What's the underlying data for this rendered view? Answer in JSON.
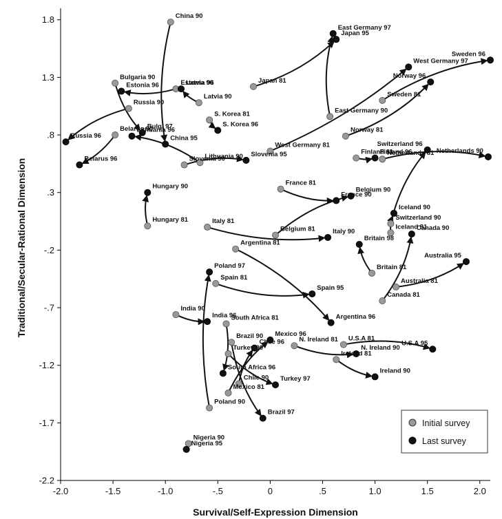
{
  "chart_data": {
    "type": "scatter",
    "xlabel": "Survival/Self-Expression Dimension",
    "ylabel": "Traditional/Secular-Rational Dimension",
    "xlim": [
      -2.0,
      2.1
    ],
    "ylim": [
      -2.2,
      1.9
    ],
    "xticks": [
      "-2.0",
      "-1.5",
      "-1.0",
      "-.5",
      "0",
      ".5",
      "1.0",
      "1.5",
      "2.0"
    ],
    "yticks": [
      "1.8",
      "1.3",
      ".8",
      ".3",
      "-.2",
      "-.7",
      "-1.2",
      "-1.7",
      "-2.2"
    ],
    "grid": false,
    "legend_position": "bottom-right",
    "legend": [
      {
        "label": "Initial survey",
        "color": "#999999"
      },
      {
        "label": "Last survey",
        "color": "#111111"
      }
    ],
    "trajectories": [
      {
        "start": {
          "label": "China 90",
          "x": -0.95,
          "y": 1.78
        },
        "end": {
          "label": "China 95",
          "x": -1.0,
          "y": 0.72
        }
      },
      {
        "start": {
          "label": "Estonia 90",
          "x": -0.9,
          "y": 1.2
        },
        "end": {
          "label": "Estonia 96",
          "x": -1.42,
          "y": 1.18
        }
      },
      {
        "start": {
          "label": "Bulgaria 90",
          "x": -1.48,
          "y": 1.25
        },
        "end": {
          "label": "Bulg. 97",
          "x": -1.22,
          "y": 0.82
        }
      },
      {
        "start": {
          "label": "Latvia 90",
          "x": -0.68,
          "y": 1.08
        },
        "end": {
          "label": "Latvia 96",
          "x": -0.85,
          "y": 1.2
        }
      },
      {
        "start": {
          "label": "Russia 90",
          "x": -1.35,
          "y": 1.03
        },
        "end": {
          "label": "Russia 96",
          "x": -1.95,
          "y": 0.74
        }
      },
      {
        "start": {
          "label": "Belarus 90",
          "x": -1.48,
          "y": 0.8
        },
        "end": {
          "label": "Belarus 96",
          "x": -1.82,
          "y": 0.54
        }
      },
      {
        "start": {
          "label": "Lithuania 90",
          "x": -0.67,
          "y": 0.56
        },
        "end": {
          "label": "Lithuania 96",
          "x": -1.32,
          "y": 0.79
        }
      },
      {
        "start": {
          "label": "Slovenia 90",
          "x": -0.82,
          "y": 0.54
        },
        "end": {
          "label": "Slovenia 95",
          "x": -0.23,
          "y": 0.58
        }
      },
      {
        "start": {
          "label": "S. Korea 81",
          "x": -0.58,
          "y": 0.93
        },
        "end": {
          "label": "S. Korea 96",
          "x": -0.5,
          "y": 0.84
        }
      },
      {
        "start": {
          "label": "Hungary 81",
          "x": -1.17,
          "y": 0.01
        },
        "end": {
          "label": "Hungary 90",
          "x": -1.17,
          "y": 0.3
        }
      },
      {
        "start": {
          "label": "Japan 81",
          "x": -0.16,
          "y": 1.22
        },
        "end": {
          "label": "Japan 95",
          "x": 0.63,
          "y": 1.63
        }
      },
      {
        "start": {
          "label": "East Germany 90",
          "x": 0.57,
          "y": 0.96
        },
        "end": {
          "label": "East Germany 97",
          "x": 0.6,
          "y": 1.68
        }
      },
      {
        "start": {
          "label": "West Germany 81",
          "x": 0.0,
          "y": 0.66
        },
        "end": {
          "label": "West Germany 97",
          "x": 1.32,
          "y": 1.39
        }
      },
      {
        "start": {
          "label": "Sweden 81",
          "x": 1.07,
          "y": 1.1
        },
        "end": {
          "label": "Sweden 96",
          "x": 2.1,
          "y": 1.45
        }
      },
      {
        "start": {
          "label": "Norway 81",
          "x": 0.72,
          "y": 0.79
        },
        "end": {
          "label": "Norway 96",
          "x": 1.53,
          "y": 1.26
        }
      },
      {
        "start": {
          "label": "Netherlands 81",
          "x": 1.07,
          "y": 0.59
        },
        "end": {
          "label": "Netherlands 90",
          "x": 2.08,
          "y": 0.61
        }
      },
      {
        "start": {
          "label": "Finland 81",
          "x": 0.82,
          "y": 0.6
        },
        "end": {
          "label": "Finland 96",
          "x": 1.0,
          "y": 0.6
        }
      },
      {
        "start": {
          "label": "Switzerland 90",
          "x": 1.15,
          "y": 0.03
        },
        "end": {
          "label": "Switzerland 96",
          "x": 1.5,
          "y": 0.67
        }
      },
      {
        "start": {
          "label": "France 81",
          "x": 0.1,
          "y": 0.33
        },
        "end": {
          "label": "France 90",
          "x": 0.63,
          "y": 0.23
        }
      },
      {
        "start": {
          "label": "Belgium 81",
          "x": 0.05,
          "y": -0.07
        },
        "end": {
          "label": "Belgium 90",
          "x": 0.77,
          "y": 0.27
        }
      },
      {
        "start": {
          "label": "Italy 81",
          "x": -0.6,
          "y": 0.0
        },
        "end": {
          "label": "Italy 90",
          "x": 0.55,
          "y": -0.09
        }
      },
      {
        "start": {
          "label": "Iceland 81",
          "x": 1.15,
          "y": -0.05
        },
        "end": {
          "label": "Iceland 90",
          "x": 1.18,
          "y": 0.12
        }
      },
      {
        "start": {
          "label": "Canada 81",
          "x": 1.07,
          "y": -0.64
        },
        "end": {
          "label": "Canada 90",
          "x": 1.35,
          "y": -0.06
        }
      },
      {
        "start": {
          "label": "Britain 81",
          "x": 0.97,
          "y": -0.4
        },
        "end": {
          "label": "Britain 98",
          "x": 0.85,
          "y": -0.15
        }
      },
      {
        "start": {
          "label": "Australia 81",
          "x": 1.2,
          "y": -0.52
        },
        "end": {
          "label": "Australia 95",
          "x": 1.87,
          "y": -0.3
        }
      },
      {
        "start": {
          "label": "Argentina 81",
          "x": -0.33,
          "y": -0.19
        },
        "end": {
          "label": "Argentina 96",
          "x": 0.58,
          "y": -0.83
        }
      },
      {
        "start": {
          "label": "Spain 81",
          "x": -0.52,
          "y": -0.49
        },
        "end": {
          "label": "Spain 95",
          "x": 0.4,
          "y": -0.58
        }
      },
      {
        "start": {
          "label": "Poland 90",
          "x": -0.58,
          "y": -1.57
        },
        "end": {
          "label": "Poland 97",
          "x": -0.58,
          "y": -0.39
        }
      },
      {
        "start": {
          "label": "India 90",
          "x": -0.9,
          "y": -0.76
        },
        "end": {
          "label": "India 96",
          "x": -0.6,
          "y": -0.82
        }
      },
      {
        "start": {
          "label": "South Africa 81",
          "x": -0.42,
          "y": -0.84
        },
        "end": {
          "label": "South Africa 96",
          "x": -0.45,
          "y": -1.27
        }
      },
      {
        "start": {
          "label": "Brazil 90",
          "x": -0.37,
          "y": -1.0
        },
        "end": {
          "label": "Brazil 97",
          "x": -0.07,
          "y": -1.66
        }
      },
      {
        "start": {
          "label": "Mexico 81",
          "x": -0.4,
          "y": -1.44
        },
        "end": {
          "label": "Mexico 96",
          "x": 0.0,
          "y": -0.98
        }
      },
      {
        "start": {
          "label": "Turkey 90",
          "x": -0.4,
          "y": -1.1
        },
        "end": {
          "label": "Turkey 97",
          "x": 0.05,
          "y": -1.37
        }
      },
      {
        "start": {
          "label": "Chile 90",
          "x": -0.3,
          "y": -1.36
        },
        "end": {
          "label": "Chile 96",
          "x": -0.15,
          "y": -1.05
        }
      },
      {
        "start": {
          "label": "N. Ireland 81",
          "x": 0.23,
          "y": -1.03
        },
        "end": {
          "label": "N. Ireland 90",
          "x": 0.82,
          "y": -1.1
        }
      },
      {
        "start": {
          "label": "U.S.A 81",
          "x": 0.7,
          "y": -1.02
        },
        "end": {
          "label": "U.S.A 95",
          "x": 1.55,
          "y": -1.06
        }
      },
      {
        "start": {
          "label": "Ireland 81",
          "x": 0.63,
          "y": -1.15
        },
        "end": {
          "label": "Ireland 90",
          "x": 1.0,
          "y": -1.3
        }
      },
      {
        "start": {
          "label": "Nigeria 90",
          "x": -0.78,
          "y": -1.88
        },
        "end": {
          "label": "Nigeria 95",
          "x": -0.8,
          "y": -1.93
        }
      }
    ]
  }
}
